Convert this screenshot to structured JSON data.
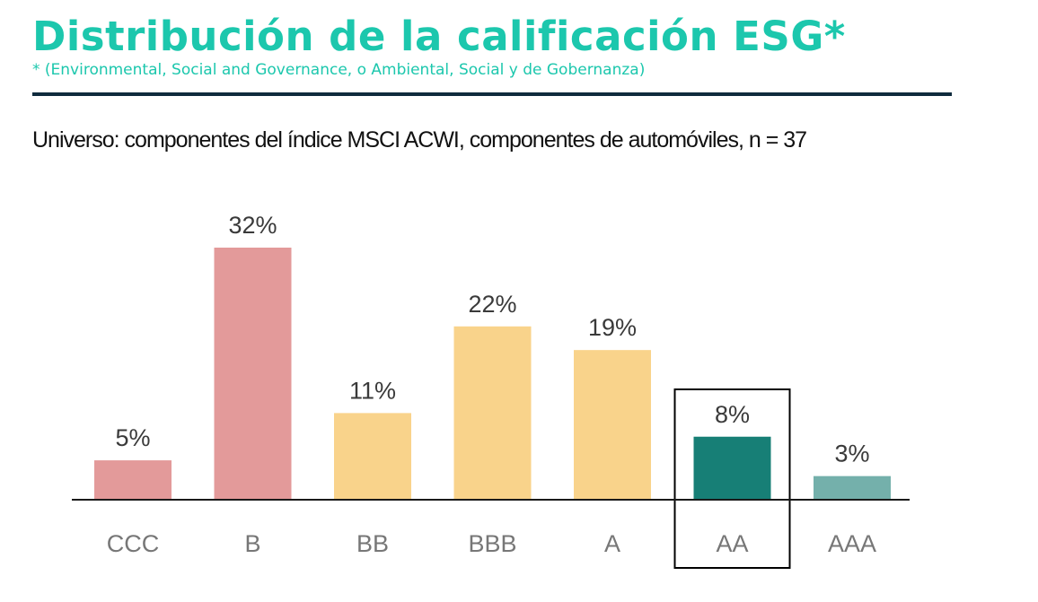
{
  "header": {
    "title": "Distribución de la calificación ESG*",
    "footnote": "* (Environmental, Social and Governance, o Ambiental, Social y de Gobernanza)",
    "universe": "Universo: componentes del índice MSCI ACWI, componentes de automóviles, n = 37"
  },
  "colors": {
    "title": "#1cc7ad",
    "rule": "#0f2b3d",
    "low": "#e39a9a",
    "mid": "#f9d38b",
    "highlight": "#177f76",
    "high": "#74b0ab"
  },
  "chart_data": {
    "type": "bar",
    "categories": [
      "CCC",
      "B",
      "BB",
      "BBB",
      "A",
      "AA",
      "AAA"
    ],
    "values": [
      5,
      32,
      11,
      22,
      19,
      8,
      3
    ],
    "value_labels": [
      "5%",
      "32%",
      "11%",
      "22%",
      "19%",
      "8%",
      "3%"
    ],
    "bar_colors": [
      "#e39a9a",
      "#e39a9a",
      "#f9d38b",
      "#f9d38b",
      "#f9d38b",
      "#177f76",
      "#74b0ab"
    ],
    "highlighted_category": "AA",
    "ylim": [
      0,
      32
    ],
    "grid": false,
    "legend": "none",
    "xlabel": "",
    "ylabel": ""
  }
}
